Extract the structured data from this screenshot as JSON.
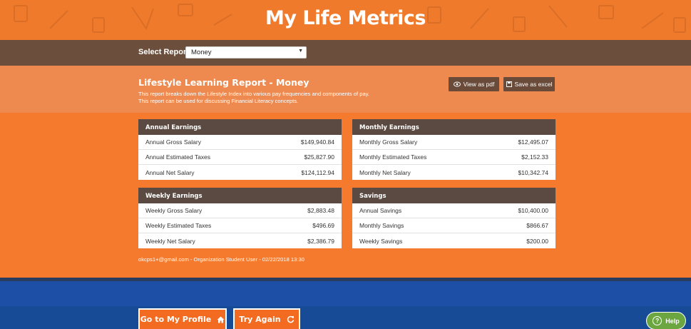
{
  "app": {
    "title": "My Life Metrics"
  },
  "select_report": {
    "label": "Select Report",
    "value": "Money"
  },
  "report": {
    "title": "Lifestyle Learning Report - Money",
    "description": "This report breaks down the Lifestyle Index into various pay frequencies and components of pay. This report can be used for discussing Financial Literacy concepts.",
    "view_pdf_label": "View as pdf",
    "save_excel_label": "Save as excel"
  },
  "panels": {
    "annual": {
      "title": "Annual Earnings",
      "rows": [
        {
          "label": "Annual Gross Salary",
          "value": "$149,940.84"
        },
        {
          "label": "Annual Estimated Taxes",
          "value": "$25,827.90"
        },
        {
          "label": "Annual Net Salary",
          "value": "$124,112.94"
        }
      ]
    },
    "monthly": {
      "title": "Monthly Earnings",
      "rows": [
        {
          "label": "Monthly Gross Salary",
          "value": "$12,495.07"
        },
        {
          "label": "Monthly Estimated Taxes",
          "value": "$2,152.33"
        },
        {
          "label": "Monthly Net Salary",
          "value": "$10,342.74"
        }
      ]
    },
    "weekly": {
      "title": "Weekly Earnings",
      "rows": [
        {
          "label": "Weekly Gross Salary",
          "value": "$2,883.48"
        },
        {
          "label": "Weekly Estimated Taxes",
          "value": "$496.69"
        },
        {
          "label": "Weekly Net Salary",
          "value": "$2,386.79"
        }
      ]
    },
    "savings": {
      "title": "Savings",
      "rows": [
        {
          "label": "Annual Savings",
          "value": "$10,400.00"
        },
        {
          "label": "Monthly Savings",
          "value": "$866.67"
        },
        {
          "label": "Weekly Savings",
          "value": "$200.00"
        }
      ]
    }
  },
  "footer": {
    "user_line": "okcps1+@gmail.com - Organization Student User - 02/22/2018 13:30"
  },
  "actions": {
    "profile_label": "Go to My Profile",
    "retry_label": "Try Again"
  },
  "help": {
    "label": "Help"
  },
  "colors": {
    "orange": "#f67a2e",
    "brown": "#5a4a42",
    "blue": "#1e4fa6",
    "green": "#6ba641"
  }
}
